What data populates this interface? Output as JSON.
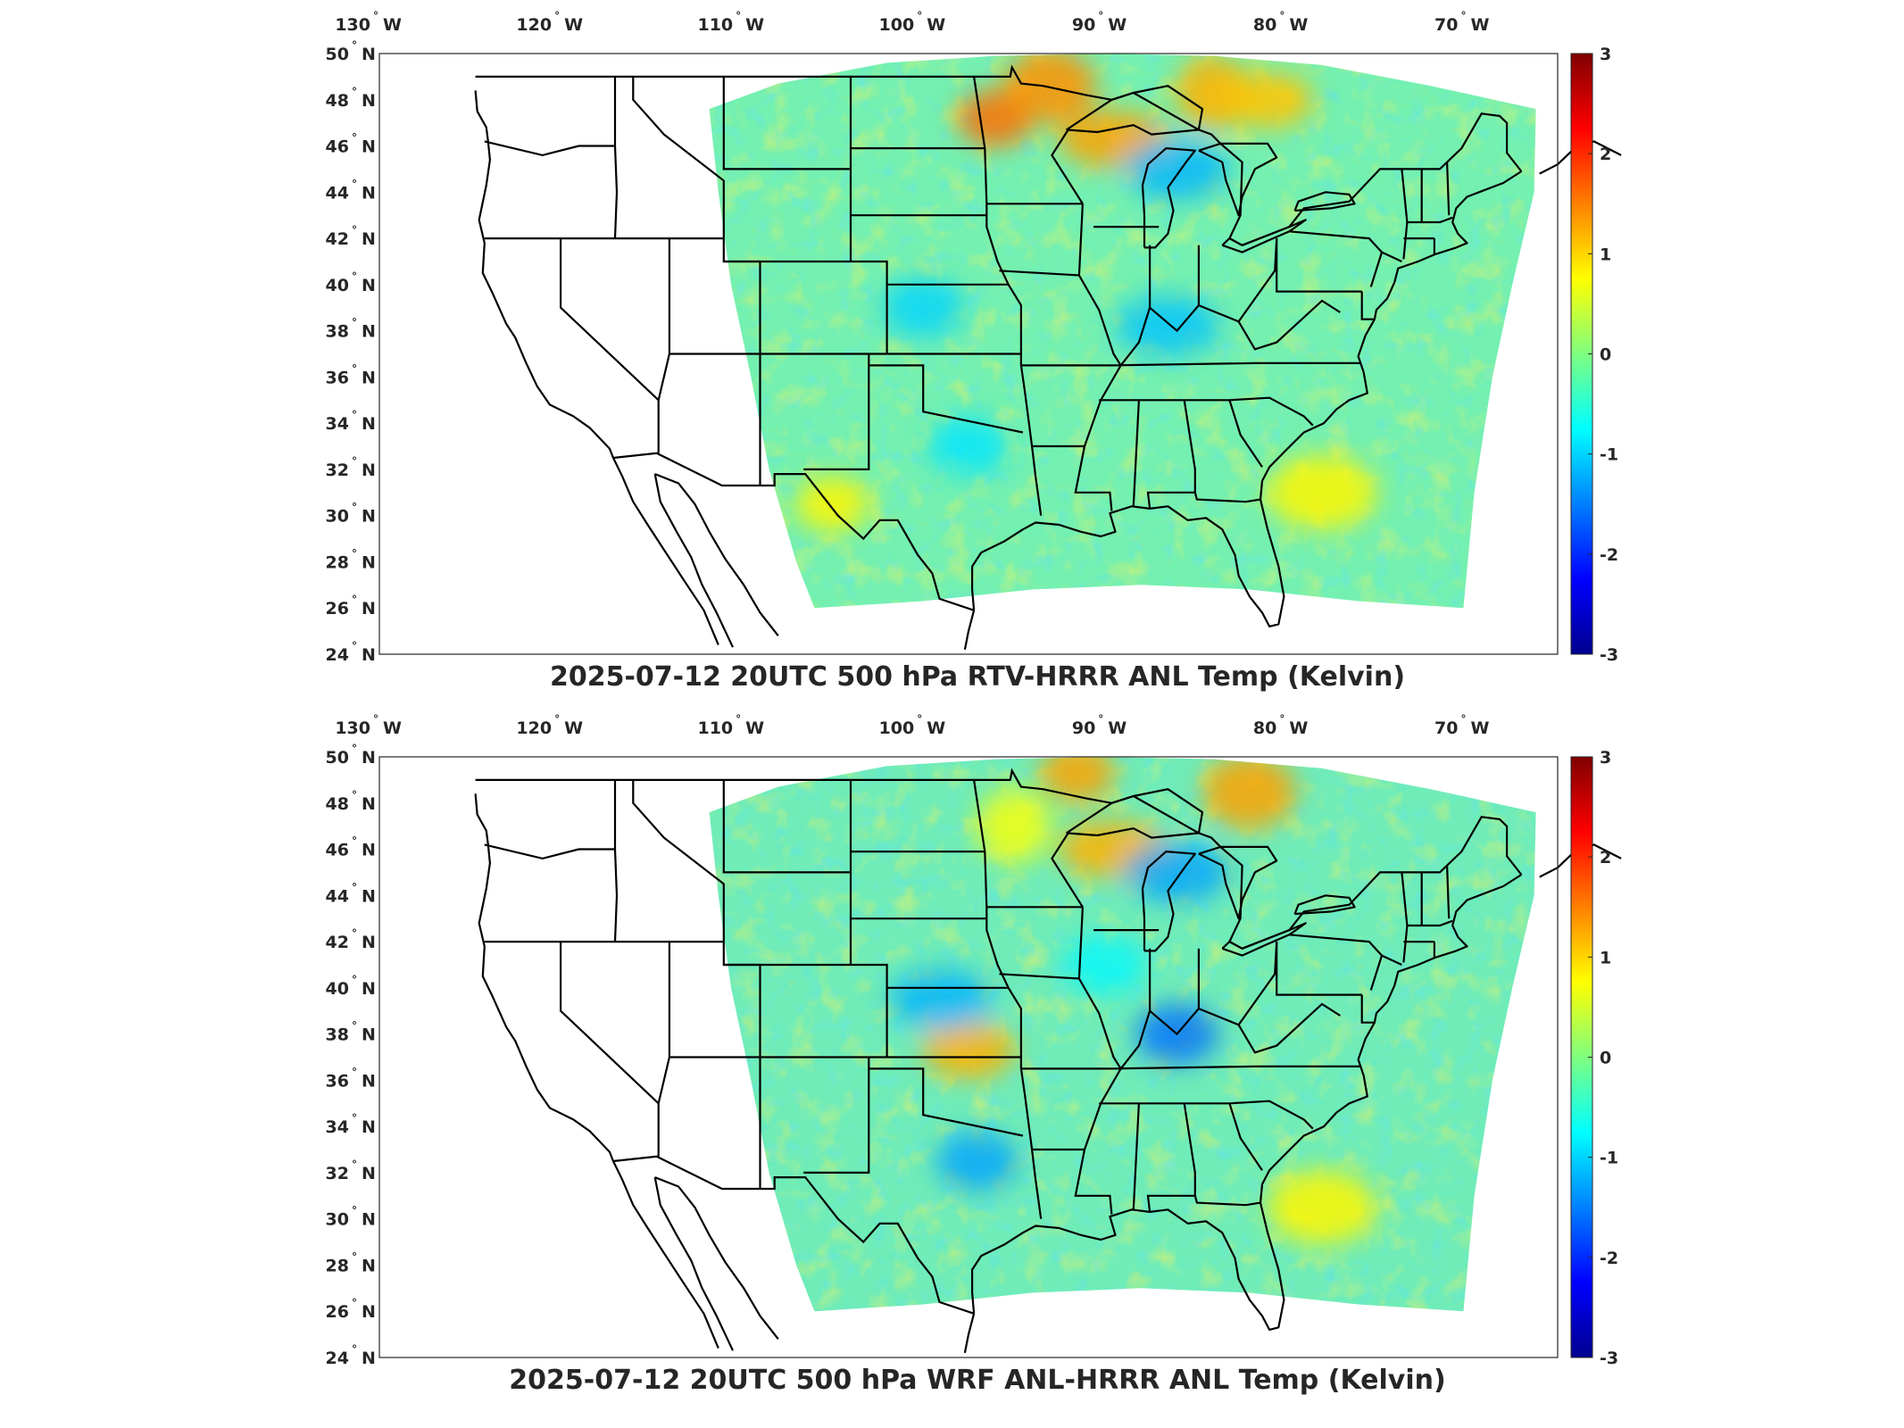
{
  "panels": [
    {
      "id": "top",
      "title": "2025-07-12 20UTC 500 hPa RTV-HRRR ANL Temp (Kelvin)",
      "lon_ticks": [
        "130",
        "120",
        "110",
        "100",
        "90",
        "80",
        "70"
      ],
      "lon_hemisphere": "W",
      "lat_ticks": [
        "50",
        "48",
        "46",
        "44",
        "42",
        "40",
        "38",
        "36",
        "34",
        "32",
        "30",
        "28",
        "26",
        "24"
      ],
      "lat_hemisphere": "N",
      "colorbar_ticks": [
        "3",
        "2",
        "1",
        "0",
        "-1",
        "-2",
        "-3"
      ],
      "warm_patches": [
        {
          "lon": -96.0,
          "lat": 47.2,
          "val": 1.6
        },
        {
          "lon": -93.0,
          "lat": 48.6,
          "val": 1.4
        },
        {
          "lon": -89.5,
          "lat": 46.3,
          "val": 1.3
        },
        {
          "lon": -84.0,
          "lat": 48.3,
          "val": 1.2
        },
        {
          "lon": -81.0,
          "lat": 48.0,
          "val": 1.1
        },
        {
          "lon": -78.0,
          "lat": 31.0,
          "val": 0.8
        },
        {
          "lon": -105.0,
          "lat": 30.5,
          "val": 0.8
        }
      ],
      "cold_patches": [
        {
          "lon": -100.0,
          "lat": 39.0,
          "val": -1.0
        },
        {
          "lon": -86.5,
          "lat": 38.2,
          "val": -1.1
        },
        {
          "lon": -97.5,
          "lat": 33.0,
          "val": -0.9
        },
        {
          "lon": -86.0,
          "lat": 45.0,
          "val": -1.2
        }
      ]
    },
    {
      "id": "bottom",
      "title": "2025-07-12 20UTC 500 hPa WRF ANL-HRRR ANL Temp (Kelvin)",
      "lon_ticks": [
        "130",
        "120",
        "110",
        "100",
        "90",
        "80",
        "70"
      ],
      "lon_hemisphere": "W",
      "lat_ticks": [
        "50",
        "48",
        "46",
        "44",
        "42",
        "40",
        "38",
        "36",
        "34",
        "32",
        "30",
        "28",
        "26",
        "24"
      ],
      "lat_hemisphere": "N",
      "colorbar_ticks": [
        "3",
        "2",
        "1",
        "0",
        "-1",
        "-2",
        "-3"
      ],
      "warm_patches": [
        {
          "lon": -91.5,
          "lat": 49.3,
          "val": 1.3
        },
        {
          "lon": -82.0,
          "lat": 48.5,
          "val": 1.3
        },
        {
          "lon": -89.5,
          "lat": 46.0,
          "val": 1.2
        },
        {
          "lon": -95.0,
          "lat": 47.0,
          "val": 0.7
        },
        {
          "lon": -97.5,
          "lat": 37.3,
          "val": 1.2
        },
        {
          "lon": -78.0,
          "lat": 30.5,
          "val": 0.8
        }
      ],
      "cold_patches": [
        {
          "lon": -86.0,
          "lat": 38.0,
          "val": -1.6
        },
        {
          "lon": -99.0,
          "lat": 39.5,
          "val": -1.2
        },
        {
          "lon": -97.0,
          "lat": 32.5,
          "val": -1.3
        },
        {
          "lon": -86.0,
          "lat": 45.0,
          "val": -1.3
        },
        {
          "lon": -90.0,
          "lat": 41.0,
          "val": -0.8
        }
      ]
    }
  ],
  "map_extent": {
    "lon_min": -130,
    "lon_max": -65,
    "lat_min": 24,
    "lat_max": 50
  },
  "colorbar": {
    "min": -3,
    "max": 3,
    "colormap": "jet"
  }
}
